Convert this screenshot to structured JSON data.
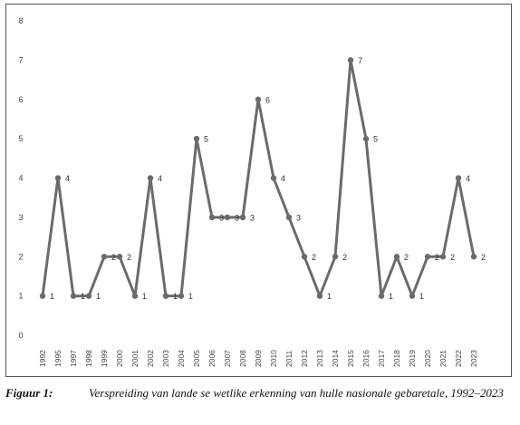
{
  "chart_data": {
    "type": "line",
    "categories": [
      "1992",
      "1995",
      "1997",
      "1998",
      "1999",
      "2000",
      "2001",
      "2002",
      "2003",
      "2004",
      "2005",
      "2006",
      "2007",
      "2008",
      "2009",
      "2010",
      "2011",
      "2012",
      "2013",
      "2014",
      "2015",
      "2016",
      "2017",
      "2018",
      "2019",
      "2020",
      "2021",
      "2022",
      "2023"
    ],
    "values": [
      1,
      4,
      1,
      1,
      2,
      2,
      1,
      4,
      1,
      1,
      5,
      3,
      3,
      3,
      6,
      4,
      3,
      2,
      1,
      2,
      7,
      5,
      1,
      2,
      1,
      2,
      2,
      4,
      2
    ],
    "y_ticks": [
      "0",
      "1",
      "2",
      "3",
      "4",
      "5",
      "6",
      "7",
      "8"
    ],
    "ylim": [
      0,
      8
    ],
    "grid": false,
    "line_color": "#6b6b6b"
  },
  "caption": {
    "label": "Figuur 1:",
    "text": "Verspreiding van lande se wetlike erkenning van hulle nasionale gebaretale, 1992–2023"
  }
}
